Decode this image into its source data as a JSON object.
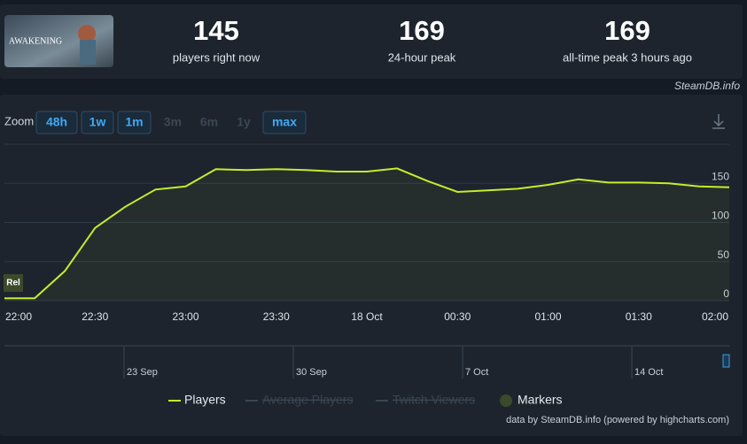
{
  "header": {
    "image_text": "AWAKENING",
    "stats": [
      {
        "value": 145,
        "label": "players right now"
      },
      {
        "value": 169,
        "label": "24-hour peak"
      },
      {
        "value": 169,
        "label": "all-time peak 3 hours ago"
      }
    ]
  },
  "brand": "SteamDB.info",
  "zoom": {
    "label": "Zoom",
    "buttons": [
      "48h",
      "1w",
      "1m",
      "3m",
      "6m",
      "1y",
      "max"
    ]
  },
  "chart_data": {
    "type": "line",
    "categories": [
      "22:00",
      null,
      null,
      "22:30",
      null,
      null,
      "23:00",
      null,
      null,
      "23:30",
      null,
      null,
      "18 Oct",
      null,
      null,
      "00:30",
      null,
      null,
      "01:00",
      null,
      null,
      "01:30",
      null,
      null,
      "02:00"
    ],
    "series": [
      {
        "name": "Players",
        "color": "#c3ee2a",
        "values": [
          3,
          3,
          38,
          93,
          120,
          142,
          146,
          168,
          167,
          168,
          167,
          165,
          165,
          169,
          153,
          139,
          141,
          143,
          148,
          155,
          151,
          151,
          150,
          146,
          145
        ]
      }
    ],
    "ylim": [
      0,
      200
    ],
    "yticks": [
      0,
      50,
      100,
      150
    ],
    "grid": true
  },
  "marker_label": "Rel",
  "navigator": [
    "23 Sep",
    "30 Sep",
    "7 Oct",
    "14 Oct"
  ],
  "legend_extra": [
    "Average Players",
    "Twitch Viewers"
  ],
  "markers_label": "Markers",
  "credits": "data by SteamDB.info (powered by highcharts.com)"
}
